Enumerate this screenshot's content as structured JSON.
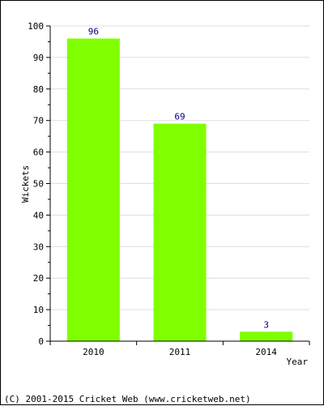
{
  "chart_data": {
    "type": "bar",
    "categories": [
      "2010",
      "2011",
      "2014"
    ],
    "values": [
      96,
      69,
      3
    ],
    "ylabel": "Wickets",
    "xlabel": "Year",
    "ylim": [
      0,
      100
    ],
    "yticks": [
      0,
      10,
      20,
      30,
      40,
      50,
      60,
      70,
      80,
      90,
      100
    ],
    "grid": true,
    "bar_color": "#80ff00",
    "label_color": "#000080"
  },
  "footer": "(C) 2001-2015 Cricket Web (www.cricketweb.net)"
}
